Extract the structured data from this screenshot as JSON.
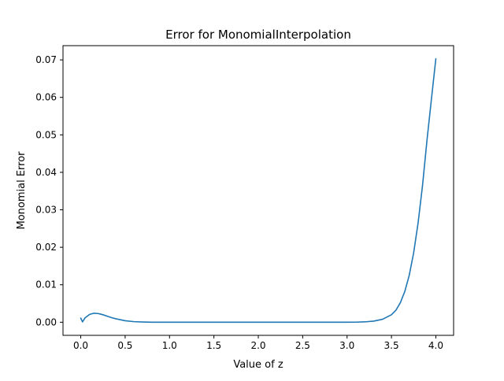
{
  "chart_data": {
    "type": "line",
    "title": "Error for MonomialInterpolation",
    "xlabel": "Value of z",
    "ylabel": "Monomial Error",
    "xlim": [
      -0.2,
      4.2
    ],
    "ylim": [
      -0.0035,
      0.0738
    ],
    "x_ticks": [
      0.0,
      0.5,
      1.0,
      1.5,
      2.0,
      2.5,
      3.0,
      3.5,
      4.0
    ],
    "x_tick_labels": [
      "0.0",
      "0.5",
      "1.0",
      "1.5",
      "2.0",
      "2.5",
      "3.0",
      "3.5",
      "4.0"
    ],
    "y_ticks": [
      0.0,
      0.01,
      0.02,
      0.03,
      0.04,
      0.05,
      0.06,
      0.07
    ],
    "y_tick_labels": [
      "0.00",
      "0.01",
      "0.02",
      "0.03",
      "0.04",
      "0.05",
      "0.06",
      "0.07"
    ],
    "grid": false,
    "series": [
      {
        "color": "#1f77b4",
        "x": [
          0.0,
          0.02,
          0.05,
          0.1,
          0.15,
          0.2,
          0.25,
          0.3,
          0.35,
          0.4,
          0.5,
          0.6,
          0.7,
          0.8,
          1.0,
          1.5,
          2.0,
          2.5,
          3.0,
          3.1,
          3.2,
          3.3,
          3.4,
          3.5,
          3.55,
          3.6,
          3.65,
          3.7,
          3.75,
          3.8,
          3.85,
          3.9,
          3.95,
          4.0
        ],
        "y": [
          0.0011,
          0.0001,
          0.0012,
          0.0021,
          0.0024,
          0.0023,
          0.002,
          0.0016,
          0.0012,
          0.0009,
          0.0004,
          0.00015,
          5e-05,
          0.0,
          0.0,
          0.0,
          0.0,
          0.0,
          0.0,
          2e-05,
          0.0001,
          0.0003,
          0.0008,
          0.002,
          0.0032,
          0.0052,
          0.0082,
          0.0125,
          0.0185,
          0.0265,
          0.0365,
          0.0485,
          0.0595,
          0.0703
        ]
      }
    ]
  }
}
